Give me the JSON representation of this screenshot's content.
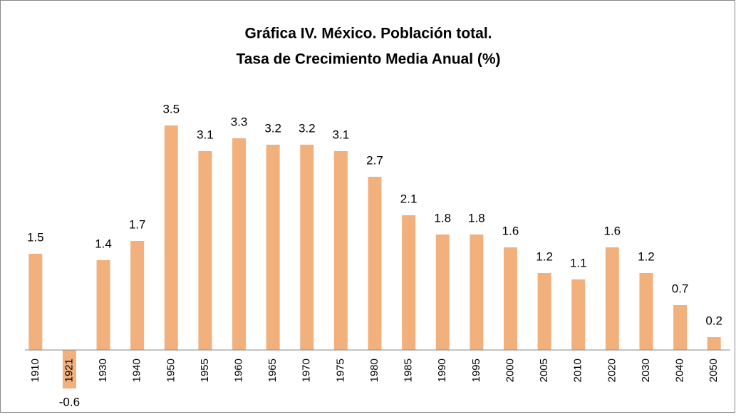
{
  "chart_data": {
    "type": "bar",
    "title": [
      "Gráfica  IV. México. Población total.",
      "Tasa de Crecimiento Media Anual (%)"
    ],
    "categories": [
      "1910",
      "1921",
      "1930",
      "1940",
      "1950",
      "1955",
      "1960",
      "1965",
      "1970",
      "1975",
      "1980",
      "1985",
      "1990",
      "1995",
      "2000",
      "2005",
      "2010",
      "2020",
      "2030",
      "2040",
      "2050"
    ],
    "values": [
      1.5,
      -0.6,
      1.4,
      1.7,
      3.5,
      3.1,
      3.3,
      3.2,
      3.2,
      3.1,
      2.7,
      2.1,
      1.8,
      1.8,
      1.6,
      1.2,
      1.1,
      1.6,
      1.2,
      0.7,
      0.2
    ],
    "color": "#f2b07d"
  }
}
